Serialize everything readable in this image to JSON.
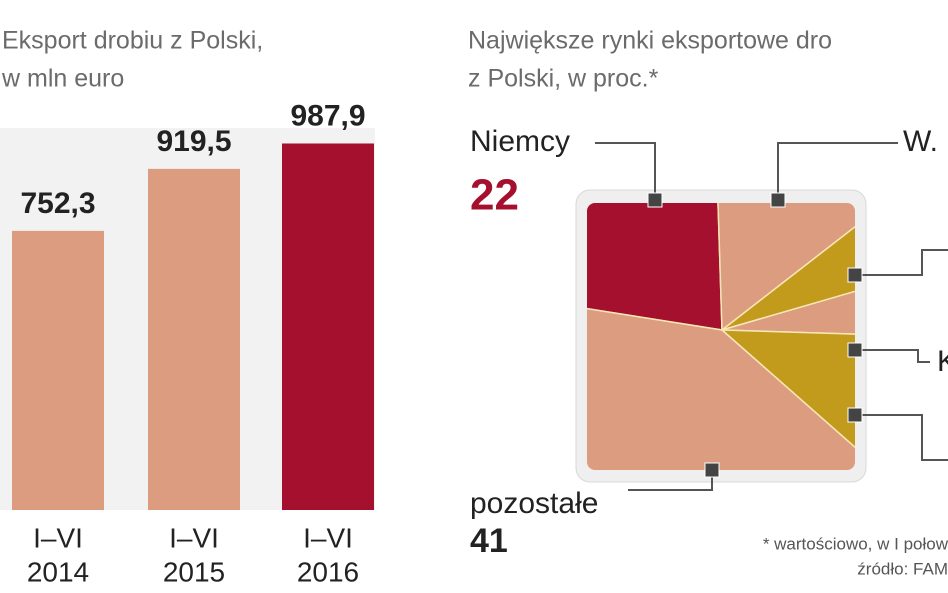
{
  "chart_data": [
    {
      "type": "bar",
      "title": [
        "Eksport drobiu z Polski,",
        "w mln euro"
      ],
      "categories": [
        [
          "I–VI",
          "2014"
        ],
        [
          "I–VI",
          "2015"
        ],
        [
          "I–VI",
          "2016"
        ]
      ],
      "values": [
        752.3,
        919.5,
        987.9
      ],
      "value_labels": [
        "752,3",
        "919,5",
        "987,9"
      ],
      "colors": [
        "#dc9c80",
        "#dc9c80",
        "#a5102e"
      ],
      "ylim": [
        0,
        1000
      ]
    },
    {
      "type": "pie",
      "title": [
        "Największe rynki eksportowe dro",
        "z Polski, w proc.*"
      ],
      "categories": [
        "Niemcy",
        "W.",
        null,
        "K",
        null,
        "pozostałe"
      ],
      "values": [
        22,
        15,
        6,
        5,
        11,
        41
      ],
      "colors": [
        "#a5102e",
        "#dc9c80",
        "#c29a1c",
        "#dc9c80",
        "#c29a1c",
        "#dc9c80"
      ],
      "note": "* wartościowo, w I połow",
      "source": "źródło: FAM"
    }
  ]
}
